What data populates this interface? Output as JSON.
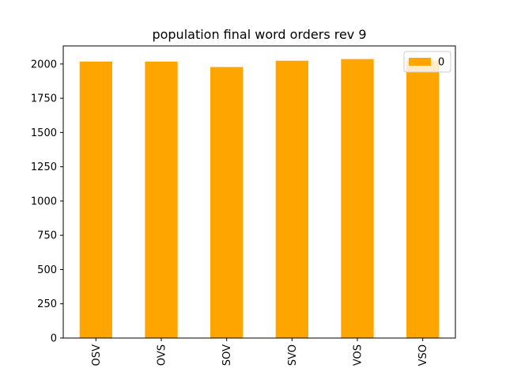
{
  "chart_data": {
    "type": "bar",
    "title": "population final word orders rev 9",
    "xlabel": "",
    "ylabel": "",
    "categories": [
      "OSV",
      "OVS",
      "SOV",
      "SVO",
      "VOS",
      "VSO"
    ],
    "series": [
      {
        "name": "0",
        "values": [
          2018,
          2018,
          1978,
          2024,
          2036,
          2026
        ],
        "color": "#ffa500"
      }
    ],
    "ylim": [
      0,
      2132
    ],
    "yticks": [
      0,
      250,
      500,
      750,
      1000,
      1250,
      1500,
      1750,
      2000
    ],
    "legend": "top-right",
    "grid": false
  }
}
